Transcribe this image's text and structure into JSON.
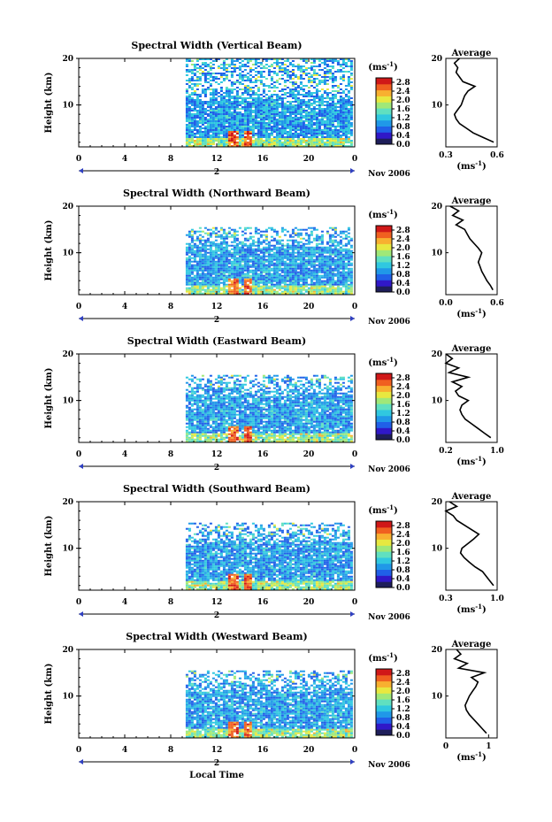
{
  "colors": {
    "scale": [
      "#1e1e5a",
      "#3018c8",
      "#2060e8",
      "#2098e8",
      "#30c8e0",
      "#60e0c0",
      "#a0e878",
      "#e8e840",
      "#f8b030",
      "#f06020",
      "#d01818"
    ],
    "background": "#ffffff"
  },
  "shared": {
    "date_label": "Nov 2006",
    "day_label": "2",
    "x_axis_label": "Local Time",
    "y_axis_label": "Height (km)",
    "colorbar_unit_base": "(ms",
    "colorbar_unit_exp": "-1",
    "avg_title": "Average"
  },
  "chart_data": [
    {
      "type": "heatmap",
      "title": "Spectral Width (Vertical Beam)",
      "x_ticks": [
        "0",
        "4",
        "8",
        "12",
        "16",
        "20",
        "0"
      ],
      "x_range": [
        0,
        24
      ],
      "y_ticks": [
        "20",
        "10"
      ],
      "y_range": [
        1,
        20
      ],
      "data_start_hour": 9.3,
      "top_height": 20,
      "colorbar_ticks": [
        "2.8",
        "2.4",
        "2.0",
        "1.6",
        "1.2",
        "0.8",
        "0.4",
        "0.0"
      ],
      "colorbar_range": [
        0,
        3.0
      ],
      "average": {
        "x_ticks": [
          "0.3",
          "0.6"
        ],
        "x_range": [
          0.3,
          0.6
        ],
        "heights": [
          2,
          3,
          4,
          5,
          6,
          7,
          8,
          9,
          10,
          11,
          12,
          13,
          14,
          15,
          16,
          17,
          18,
          19,
          20
        ],
        "values": [
          0.58,
          0.52,
          0.46,
          0.42,
          0.38,
          0.36,
          0.35,
          0.37,
          0.39,
          0.4,
          0.41,
          0.43,
          0.47,
          0.4,
          0.38,
          0.36,
          0.37,
          0.35,
          0.38
        ]
      }
    },
    {
      "type": "heatmap",
      "title": "Spectral Width (Northward Beam)",
      "x_ticks": [
        "0",
        "4",
        "8",
        "12",
        "16",
        "20",
        "0"
      ],
      "x_range": [
        0,
        24
      ],
      "y_ticks": [
        "20",
        "10"
      ],
      "y_range": [
        1,
        20
      ],
      "data_start_hour": 9.3,
      "top_height": 15.5,
      "colorbar_ticks": [
        "2.8",
        "2.4",
        "2.0",
        "1.6",
        "1.2",
        "0.8",
        "0.4",
        "0.0"
      ],
      "colorbar_range": [
        0,
        3.0
      ],
      "average": {
        "x_ticks": [
          "0.0",
          "0.6"
        ],
        "x_range": [
          0.0,
          0.6
        ],
        "heights": [
          2,
          3,
          4,
          5,
          6,
          7,
          8,
          9,
          10,
          11,
          12,
          13,
          14,
          15,
          16,
          17,
          18,
          19,
          20
        ],
        "values": [
          0.55,
          0.52,
          0.48,
          0.45,
          0.42,
          0.4,
          0.38,
          0.4,
          0.42,
          0.38,
          0.33,
          0.28,
          0.25,
          0.22,
          0.12,
          0.2,
          0.08,
          0.15,
          0.05
        ]
      }
    },
    {
      "type": "heatmap",
      "title": "Spectral Width (Eastward Beam)",
      "x_ticks": [
        "0",
        "4",
        "8",
        "12",
        "16",
        "20",
        "0"
      ],
      "x_range": [
        0,
        24
      ],
      "y_ticks": [
        "20",
        "10"
      ],
      "y_range": [
        1,
        20
      ],
      "data_start_hour": 9.3,
      "top_height": 15.5,
      "colorbar_ticks": [
        "2.8",
        "2.4",
        "2.0",
        "1.6",
        "1.2",
        "0.8",
        "0.4",
        "0.0"
      ],
      "colorbar_range": [
        0,
        3.0
      ],
      "average": {
        "x_ticks": [
          "0.2",
          "1.0"
        ],
        "x_range": [
          0.2,
          1.0
        ],
        "heights": [
          2,
          3,
          4,
          5,
          6,
          7,
          8,
          9,
          10,
          11,
          12,
          13,
          14,
          15,
          16,
          17,
          18,
          19,
          20
        ],
        "values": [
          0.9,
          0.8,
          0.7,
          0.6,
          0.5,
          0.45,
          0.42,
          0.45,
          0.55,
          0.4,
          0.35,
          0.45,
          0.3,
          0.55,
          0.25,
          0.4,
          0.2,
          0.3,
          0.2
        ]
      }
    },
    {
      "type": "heatmap",
      "title": "Spectral Width (Southward Beam)",
      "x_ticks": [
        "0",
        "4",
        "8",
        "12",
        "16",
        "20",
        "0"
      ],
      "x_range": [
        0,
        24
      ],
      "y_ticks": [
        "20",
        "10"
      ],
      "y_range": [
        1,
        20
      ],
      "data_start_hour": 9.3,
      "top_height": 15.5,
      "colorbar_ticks": [
        "2.8",
        "2.4",
        "2.0",
        "1.6",
        "1.2",
        "0.8",
        "0.4",
        "0.0"
      ],
      "colorbar_range": [
        0,
        3.0
      ],
      "average": {
        "x_ticks": [
          "0.3",
          "1.0"
        ],
        "x_range": [
          0.3,
          1.0
        ],
        "heights": [
          2,
          3,
          4,
          5,
          6,
          7,
          8,
          9,
          10,
          11,
          12,
          13,
          14,
          15,
          16,
          17,
          18,
          19,
          20
        ],
        "values": [
          0.95,
          0.9,
          0.85,
          0.8,
          0.7,
          0.62,
          0.55,
          0.5,
          0.52,
          0.6,
          0.68,
          0.75,
          0.65,
          0.55,
          0.45,
          0.4,
          0.3,
          0.45,
          0.35
        ]
      }
    },
    {
      "type": "heatmap",
      "title": "Spectral Width (Westward Beam)",
      "x_ticks": [
        "0",
        "4",
        "8",
        "12",
        "16",
        "20",
        "0"
      ],
      "x_range": [
        0,
        24
      ],
      "y_ticks": [
        "20",
        "10"
      ],
      "y_range": [
        1,
        20
      ],
      "data_start_hour": 9.3,
      "top_height": 15.5,
      "colorbar_ticks": [
        "2.8",
        "2.4",
        "2.0",
        "1.6",
        "1.2",
        "0.8",
        "0.4",
        "0.0"
      ],
      "colorbar_range": [
        0,
        3.0
      ],
      "average": {
        "x_ticks": [
          "0",
          "1"
        ],
        "x_range": [
          0,
          1.2
        ],
        "heights": [
          2,
          3,
          4,
          5,
          6,
          7,
          8,
          9,
          10,
          11,
          12,
          13,
          14,
          15,
          16,
          17,
          18,
          19,
          20
        ],
        "values": [
          0.95,
          0.85,
          0.75,
          0.65,
          0.55,
          0.48,
          0.45,
          0.5,
          0.55,
          0.62,
          0.7,
          0.75,
          0.6,
          0.9,
          0.3,
          0.5,
          0.2,
          0.35,
          0.25
        ]
      }
    }
  ]
}
